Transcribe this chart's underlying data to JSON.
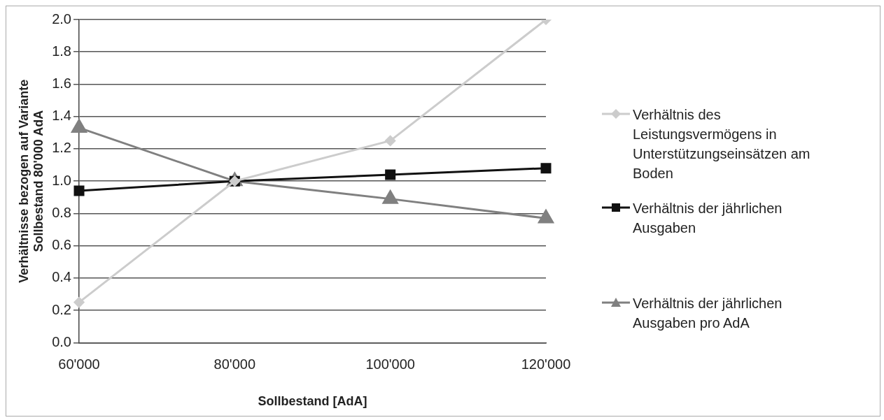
{
  "chart_data": {
    "type": "line",
    "xlabel": "Sollbestand [AdA]",
    "ylabel": "Verhältnisse bezogen auf Variante Sollbestand 80'000 AdA",
    "categories": [
      "60'000",
      "80'000",
      "100'000",
      "120'000"
    ],
    "series": [
      {
        "name": "Verhältnis des Leistungsvermögens in Unterstützungseinsätzen am Boden",
        "color": "#cccccc",
        "marker": "diamond",
        "values": [
          0.25,
          1.0,
          1.25,
          2.0
        ]
      },
      {
        "name": "Verhältnis der jährlichen Ausgaben",
        "color": "#111111",
        "marker": "square",
        "values": [
          0.94,
          1.0,
          1.04,
          1.08
        ]
      },
      {
        "name": "Verhältnis der jährlichen Ausgaben pro AdA",
        "color": "#808080",
        "marker": "triangle",
        "values": [
          1.33,
          1.0,
          0.89,
          0.77
        ]
      }
    ],
    "ylim": [
      0,
      2
    ],
    "yticks": [
      {
        "value": 0,
        "label": "0.0"
      },
      0.2,
      0.4,
      0.6,
      0.8,
      {
        "value": 1,
        "label": "1.0"
      },
      1.2,
      1.4,
      1.6,
      1.8,
      {
        "value": 2,
        "label": "2.0"
      }
    ],
    "grid": "y",
    "legend": "right",
    "line_style": "solid"
  }
}
